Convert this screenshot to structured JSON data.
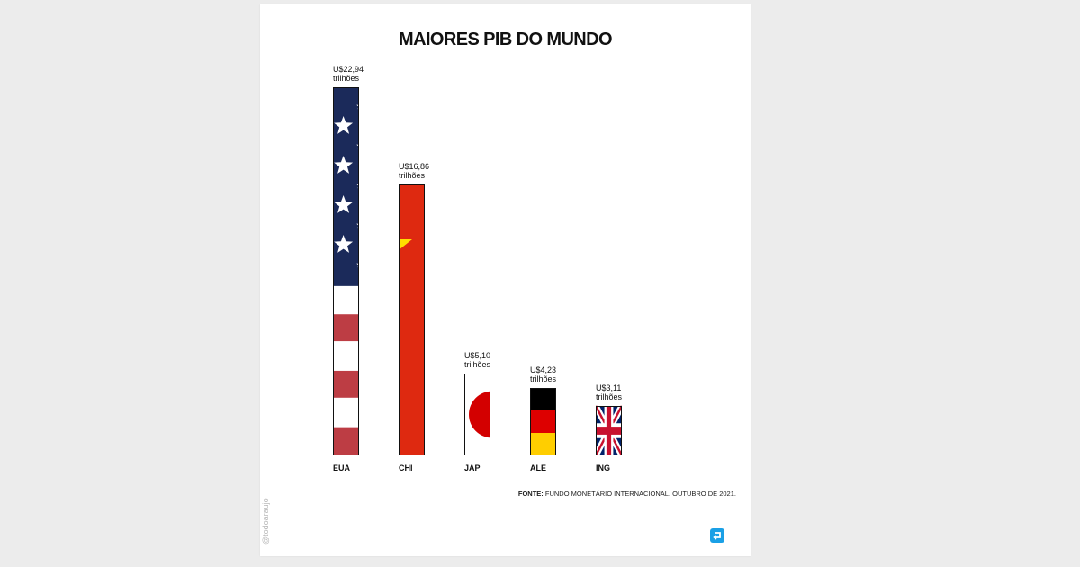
{
  "chart_data": {
    "type": "bar",
    "title": "MAIORES PIB DO MUNDO",
    "categories": [
      "EUA",
      "CHI",
      "JAP",
      "ALE",
      "ING"
    ],
    "values": [
      22.94,
      16.86,
      5.1,
      4.23,
      3.11
    ],
    "value_labels": [
      "U$22,94",
      "U$16,86",
      "U$5,10",
      "U$4,23",
      "U$3,11"
    ],
    "value_unit": "trilhões",
    "bar_fills": [
      "flag-usa",
      "flag-china",
      "flag-japan",
      "flag-germany",
      "flag-uk"
    ],
    "grid": false,
    "legend": "none"
  },
  "source": {
    "label": "FONTE:",
    "text": "FUNDO MONETÁRIO INTERNACIONAL. OUTUBRO DE 2021."
  },
  "credit": "@todoaraujo",
  "colors": {
    "usa_blue": "#1b2a5a",
    "usa_red": "#bd3d44",
    "china_red": "#de2910",
    "china_star": "#ffde00",
    "japan_red": "#d30000",
    "germany_black": "#000000",
    "germany_red": "#dd0000",
    "germany_gold": "#ffce00",
    "uk_blue": "#012169",
    "uk_red": "#c8102e",
    "logo_blue": "#1aa0e6"
  },
  "icons": {
    "logo": "return-arrow-icon"
  }
}
